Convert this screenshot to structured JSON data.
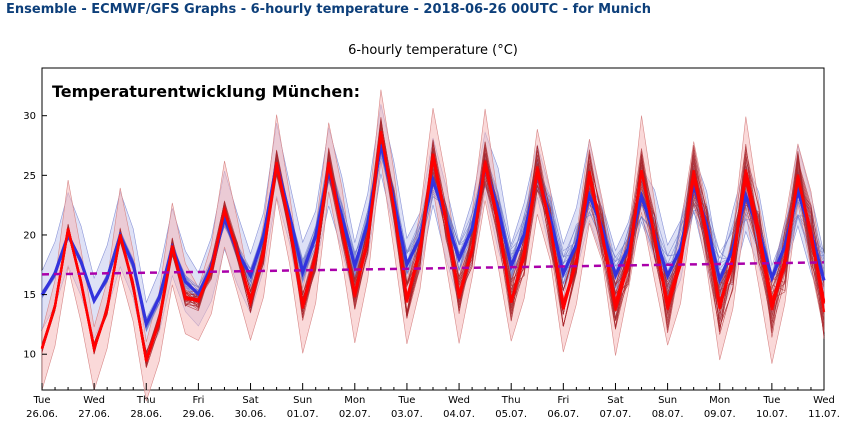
{
  "header": {
    "title": "Ensemble - ECMWF/GFS Graphs - 6-hourly temperature - 2018-06-26 00UTC - for Munich"
  },
  "colors": {
    "ecmwf": "#ff0000",
    "gfs": "#3333dd",
    "trend": "#aa00aa",
    "header": "#0d3f7a"
  },
  "chart_data": {
    "type": "line",
    "title": "6-hourly temperature (°C)",
    "annotation": "Temperaturentwicklung München:",
    "xlabel": "",
    "ylabel": "",
    "ylim": [
      7,
      34
    ],
    "yticks": [
      10,
      15,
      20,
      25,
      30
    ],
    "grid": false,
    "x_ticks": [
      {
        "day": "Tue",
        "date": "26.06."
      },
      {
        "day": "Wed",
        "date": "27.06."
      },
      {
        "day": "Thu",
        "date": "28.06."
      },
      {
        "day": "Fri",
        "date": "29.06."
      },
      {
        "day": "Sat",
        "date": "30.06."
      },
      {
        "day": "Sun",
        "date": "01.07."
      },
      {
        "day": "Mon",
        "date": "02.07."
      },
      {
        "day": "Tue",
        "date": "03.07."
      },
      {
        "day": "Wed",
        "date": "04.07."
      },
      {
        "day": "Thu",
        "date": "05.07."
      },
      {
        "day": "Fri",
        "date": "06.07."
      },
      {
        "day": "Sat",
        "date": "07.07."
      },
      {
        "day": "Sun",
        "date": "08.07."
      },
      {
        "day": "Mon",
        "date": "09.07."
      },
      {
        "day": "Tue",
        "date": "10.07."
      },
      {
        "day": "Wed",
        "date": "11.07."
      }
    ],
    "daily_min": [
      10.5,
      10.5,
      9.5,
      14.5,
      14.5,
      14.0,
      15.0,
      14.5,
      15.0,
      14.5,
      14.0,
      14.0,
      14.0,
      14.0,
      14.0,
      14.0
    ],
    "daily_max": [
      20.5,
      20.0,
      19.0,
      22.0,
      26.0,
      26.0,
      28.5,
      26.5,
      26.0,
      25.5,
      25.0,
      25.0,
      25.0,
      25.0,
      25.0
    ],
    "gfs_min": [
      15.0,
      14.5,
      12.5,
      15.0,
      16.5,
      17.0,
      17.5,
      17.5,
      18.0,
      17.5,
      17.0,
      16.5,
      16.5,
      16.5,
      16.5,
      16.5
    ],
    "gfs_max": [
      20.0,
      20.0,
      19.0,
      21.5,
      26.0,
      25.5,
      27.5,
      24.5,
      25.5,
      25.0,
      23.5,
      23.0,
      24.0,
      23.5,
      23.5
    ],
    "trend": {
      "start": 16.7,
      "end": 17.7
    },
    "series": [
      {
        "id": "ecmwf-members"
      },
      {
        "id": "gfs-members"
      },
      {
        "id": "ecmwf-mean"
      },
      {
        "id": "gfs-mean"
      },
      {
        "id": "climate-trend"
      }
    ]
  }
}
